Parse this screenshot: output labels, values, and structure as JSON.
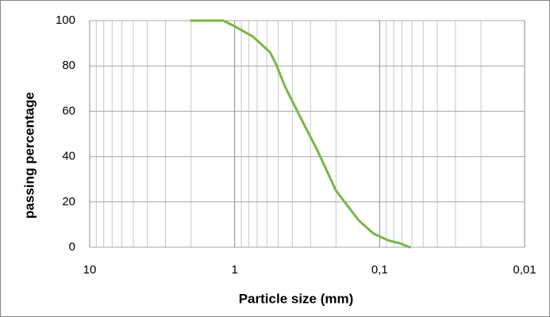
{
  "chart_data": {
    "type": "line",
    "x_label": "Particle size (mm)",
    "y_label": "passing percentage",
    "x": [
      2,
      1.2,
      1,
      0.75,
      0.57,
      0.52,
      0.45,
      0.35,
      0.27,
      0.2,
      0.14,
      0.11,
      0.087,
      0.072,
      0.062
    ],
    "series": [
      {
        "color": "#7ab648",
        "values": [
          100,
          100,
          97.5,
          93,
          86,
          81,
          71,
          57,
          43,
          25,
          12,
          6,
          3,
          1.7,
          0
        ]
      }
    ],
    "xlim": [
      10,
      0.01
    ],
    "xticks": [
      10,
      1,
      {
        "value": 0.1,
        "label": "0,1"
      },
      {
        "value": 0.01,
        "label": "0,01"
      }
    ],
    "x_log": true,
    "ylim": [
      0,
      100
    ],
    "yticks": [
      0,
      20,
      40,
      60,
      80,
      100
    ],
    "grid": true
  }
}
